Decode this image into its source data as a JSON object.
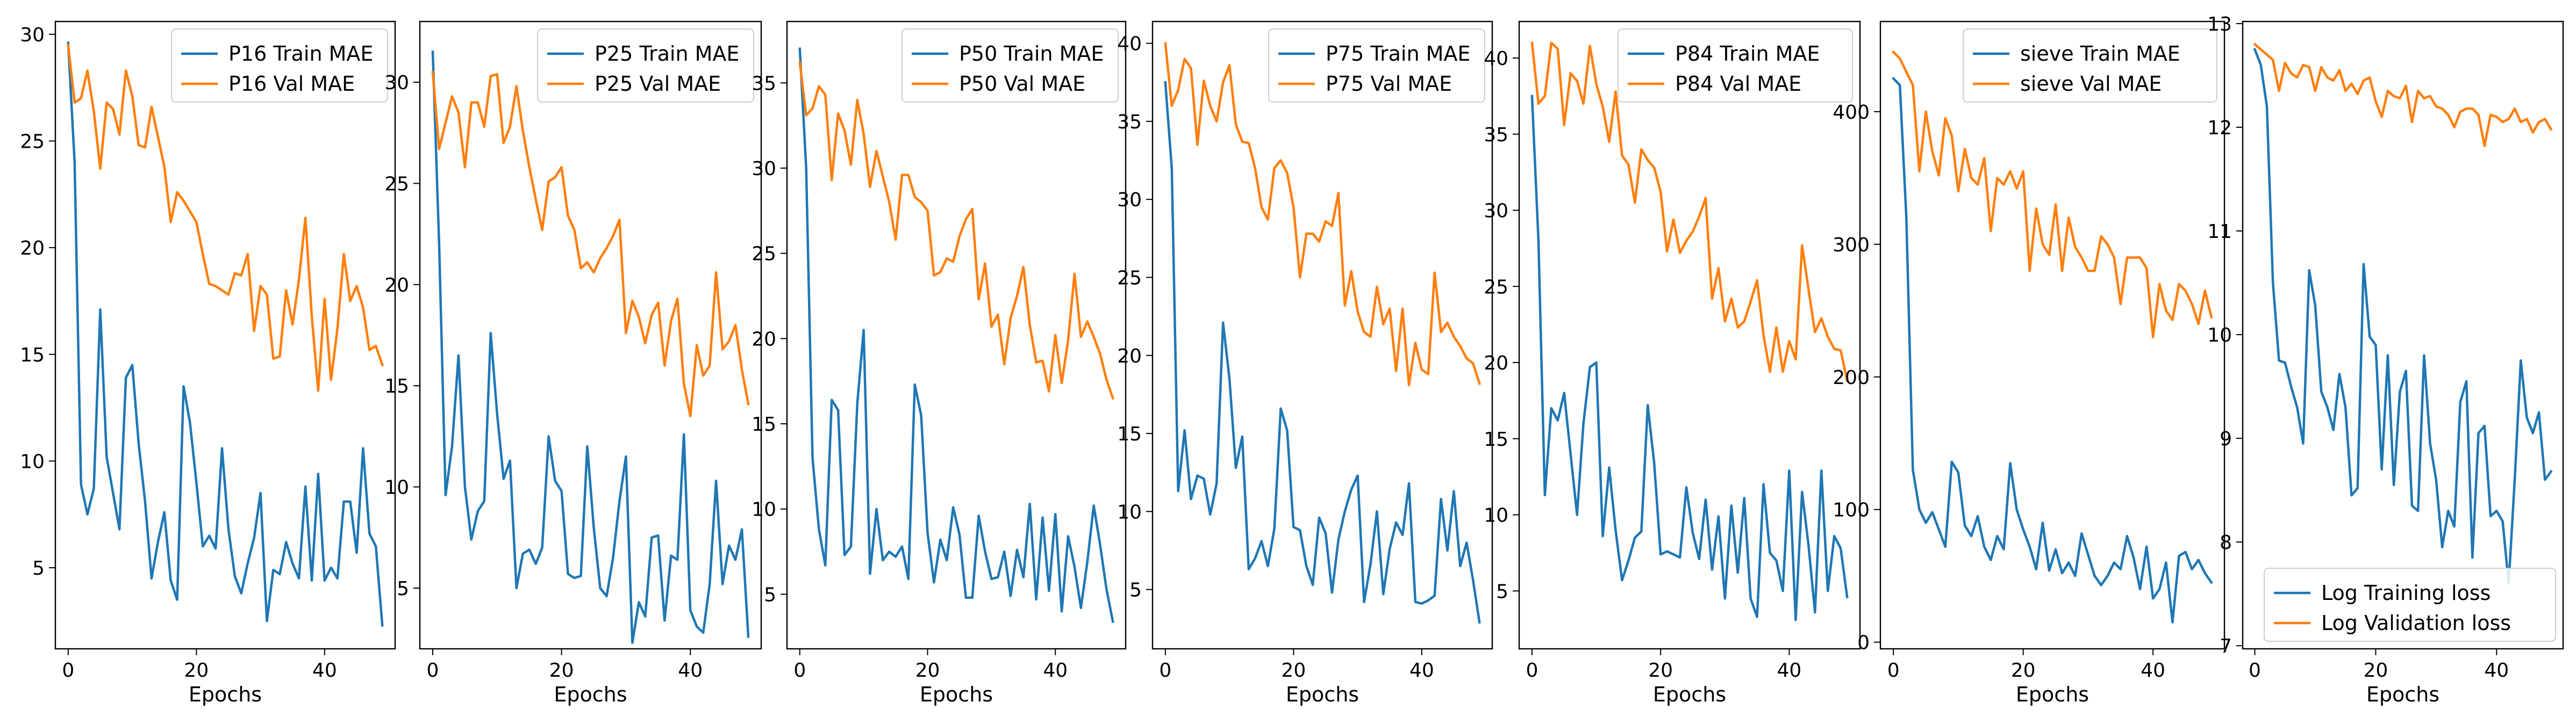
{
  "colors": {
    "train": "#1f77b4",
    "val": "#ff7f0e"
  },
  "chart_data": [
    {
      "type": "line",
      "xlabel": "Epochs",
      "ylabel": "",
      "xlim": [
        -2,
        51
      ],
      "ylim": [
        1.2,
        30.6
      ],
      "xticks": [
        0,
        20,
        40
      ],
      "yticks": [
        5,
        10,
        15,
        20,
        25,
        30
      ],
      "legend": "upper-right",
      "series": [
        {
          "name": "P16 Train MAE",
          "color": "#1f77b4",
          "values": [
            29.6,
            24.0,
            8.9,
            7.5,
            8.7,
            17.1,
            10.2,
            8.5,
            6.8,
            13.9,
            14.5,
            10.8,
            8.1,
            4.5,
            6.2,
            7.6,
            4.4,
            3.5,
            13.5,
            11.8,
            9.0,
            6.0,
            6.5,
            5.9,
            10.6,
            6.8,
            4.6,
            3.8,
            5.2,
            6.4,
            8.5,
            2.5,
            4.9,
            4.7,
            6.2,
            5.2,
            4.5,
            8.8,
            4.4,
            9.4,
            4.4,
            5.0,
            4.5,
            8.1,
            8.1,
            5.7,
            10.6,
            6.6,
            6.0,
            2.3
          ]
        },
        {
          "name": "P16 Val MAE",
          "color": "#ff7f0e",
          "values": [
            29.5,
            26.8,
            27.0,
            28.3,
            26.4,
            23.7,
            26.8,
            26.5,
            25.3,
            28.3,
            27.1,
            24.8,
            24.7,
            26.6,
            25.2,
            23.8,
            21.2,
            22.6,
            22.2,
            21.7,
            21.2,
            19.7,
            18.3,
            18.2,
            18.0,
            17.8,
            18.8,
            18.7,
            19.7,
            16.1,
            18.2,
            17.8,
            14.8,
            14.9,
            18.0,
            16.4,
            18.5,
            21.4,
            16.8,
            13.3,
            17.6,
            13.8,
            16.2,
            19.7,
            17.5,
            18.2,
            17.2,
            15.2,
            15.4,
            14.5
          ]
        }
      ]
    },
    {
      "type": "line",
      "xlabel": "Epochs",
      "ylabel": "",
      "xlim": [
        -2,
        51
      ],
      "ylim": [
        2.0,
        33.0
      ],
      "xticks": [
        0,
        20,
        40
      ],
      "yticks": [
        5,
        10,
        15,
        20,
        25,
        30
      ],
      "legend": "upper-right",
      "series": [
        {
          "name": "P25 Train MAE",
          "color": "#1f77b4",
          "values": [
            31.5,
            22.0,
            9.6,
            12.0,
            16.5,
            10.0,
            7.4,
            8.8,
            9.3,
            17.6,
            13.6,
            10.4,
            11.3,
            5.0,
            6.7,
            6.9,
            6.2,
            7.0,
            12.5,
            10.3,
            9.8,
            5.7,
            5.5,
            5.6,
            12.0,
            8.0,
            5.0,
            4.6,
            6.5,
            9.3,
            11.5,
            2.3,
            4.3,
            3.6,
            7.5,
            7.6,
            3.4,
            6.6,
            6.4,
            12.6,
            3.9,
            3.1,
            2.8,
            5.2,
            10.3,
            5.2,
            7.1,
            6.4,
            7.9,
            2.6
          ]
        },
        {
          "name": "P25 Val MAE",
          "color": "#ff7f0e",
          "values": [
            30.5,
            26.7,
            28.0,
            29.3,
            28.5,
            25.8,
            29.0,
            29.0,
            27.8,
            30.3,
            30.4,
            27.0,
            27.8,
            29.8,
            27.6,
            25.8,
            24.2,
            22.7,
            25.1,
            25.3,
            25.8,
            23.4,
            22.7,
            20.8,
            21.1,
            20.6,
            21.3,
            21.8,
            22.4,
            23.2,
            17.6,
            19.2,
            18.4,
            17.1,
            18.5,
            19.1,
            16.0,
            18.2,
            19.3,
            15.1,
            13.5,
            17.0,
            15.5,
            16.0,
            20.6,
            16.8,
            17.2,
            18.0,
            15.8,
            14.1
          ]
        }
      ]
    },
    {
      "type": "line",
      "xlabel": "Epochs",
      "ylabel": "",
      "xlim": [
        -2,
        51
      ],
      "ylim": [
        1.8,
        38.6
      ],
      "xticks": [
        0,
        20,
        40
      ],
      "yticks": [
        5,
        10,
        15,
        20,
        25,
        30,
        35
      ],
      "legend": "upper-right",
      "series": [
        {
          "name": "P50 Train MAE",
          "color": "#1f77b4",
          "values": [
            37.0,
            30.0,
            13.0,
            8.8,
            6.7,
            16.4,
            15.8,
            7.3,
            7.8,
            16.2,
            20.5,
            6.2,
            10.0,
            7.0,
            7.5,
            7.2,
            7.8,
            5.9,
            17.3,
            15.5,
            8.6,
            5.7,
            8.2,
            7.0,
            10.1,
            8.5,
            4.8,
            4.8,
            9.6,
            7.5,
            5.9,
            6.0,
            7.5,
            4.9,
            7.6,
            6.0,
            10.3,
            4.7,
            9.5,
            5.2,
            9.7,
            4.0,
            8.4,
            6.6,
            4.2,
            6.9,
            10.2,
            7.9,
            5.3,
            3.4
          ]
        },
        {
          "name": "P50 Val MAE",
          "color": "#ff7f0e",
          "values": [
            36.2,
            33.1,
            33.5,
            34.8,
            34.3,
            29.3,
            33.2,
            32.2,
            30.2,
            34.0,
            32.0,
            28.9,
            31.0,
            29.5,
            28.0,
            25.8,
            29.6,
            29.6,
            28.3,
            28.0,
            27.5,
            23.7,
            23.9,
            24.7,
            24.5,
            26.0,
            27.0,
            27.6,
            22.3,
            24.4,
            20.7,
            21.4,
            18.5,
            21.2,
            22.5,
            24.2,
            20.8,
            18.6,
            18.7,
            16.9,
            20.2,
            17.4,
            19.9,
            23.8,
            20.1,
            21.0,
            20.1,
            19.1,
            17.6,
            16.5
          ]
        }
      ]
    },
    {
      "type": "line",
      "xlabel": "Epochs",
      "ylabel": "",
      "xlim": [
        -2,
        51
      ],
      "ylim": [
        1.2,
        41.4
      ],
      "xticks": [
        0,
        20,
        40
      ],
      "yticks": [
        5,
        10,
        15,
        20,
        25,
        30,
        35,
        40
      ],
      "legend": "upper-right",
      "series": [
        {
          "name": "P75 Train MAE",
          "color": "#1f77b4",
          "values": [
            37.5,
            32.0,
            11.3,
            15.2,
            10.8,
            12.3,
            12.1,
            9.8,
            11.8,
            22.1,
            18.5,
            12.8,
            14.8,
            6.3,
            7.0,
            8.1,
            6.5,
            8.9,
            16.6,
            15.2,
            9.0,
            8.8,
            6.5,
            5.3,
            9.6,
            8.6,
            4.8,
            8.2,
            10.0,
            11.4,
            12.3,
            4.2,
            6.6,
            10.0,
            4.7,
            7.6,
            9.3,
            8.5,
            11.8,
            4.2,
            4.1,
            4.3,
            4.6,
            10.8,
            7.5,
            11.3,
            6.5,
            8.0,
            5.6,
            2.9
          ]
        },
        {
          "name": "P75 Val MAE",
          "color": "#ff7f0e",
          "values": [
            40.0,
            36.0,
            37.0,
            39.0,
            38.4,
            33.5,
            37.6,
            36.0,
            35.0,
            37.5,
            38.6,
            34.8,
            33.7,
            33.6,
            32.0,
            29.5,
            28.7,
            32.0,
            32.5,
            31.7,
            29.5,
            25.0,
            27.8,
            27.8,
            27.3,
            28.6,
            28.3,
            30.4,
            23.2,
            25.4,
            22.8,
            21.5,
            21.2,
            24.4,
            22.0,
            23.0,
            19.0,
            23.0,
            18.1,
            20.8,
            19.1,
            18.8,
            25.3,
            21.5,
            22.1,
            21.2,
            20.6,
            19.8,
            19.5,
            18.2
          ]
        }
      ]
    },
    {
      "type": "line",
      "xlabel": "Epochs",
      "ylabel": "",
      "xlim": [
        -2,
        51
      ],
      "ylim": [
        1.2,
        42.4
      ],
      "xticks": [
        0,
        20,
        40
      ],
      "yticks": [
        5,
        10,
        15,
        20,
        25,
        30,
        35,
        40
      ],
      "legend": "upper-right",
      "series": [
        {
          "name": "P84 Train MAE",
          "color": "#1f77b4",
          "values": [
            37.5,
            28.0,
            11.3,
            17.0,
            16.2,
            18.0,
            14.0,
            10.0,
            16.0,
            19.7,
            20.0,
            8.6,
            13.1,
            9.0,
            5.7,
            7.0,
            8.5,
            8.9,
            17.2,
            13.4,
            7.4,
            7.6,
            7.4,
            7.2,
            11.8,
            8.8,
            7.1,
            11.0,
            6.4,
            9.9,
            4.5,
            10.6,
            6.2,
            11.1,
            4.5,
            3.3,
            12.0,
            7.5,
            7.0,
            5.0,
            12.9,
            3.1,
            11.5,
            8.0,
            3.6,
            12.9,
            5.0,
            8.6,
            7.8,
            4.6
          ]
        },
        {
          "name": "P84 Val MAE",
          "color": "#ff7f0e",
          "values": [
            41.0,
            37.0,
            37.5,
            41.0,
            40.6,
            35.6,
            39.0,
            38.5,
            37.0,
            40.8,
            38.3,
            36.8,
            34.5,
            37.8,
            33.6,
            33.0,
            30.5,
            34.0,
            33.3,
            32.8,
            31.2,
            27.3,
            29.4,
            27.2,
            28.0,
            28.6,
            29.6,
            30.8,
            24.2,
            26.2,
            22.7,
            24.2,
            22.3,
            22.7,
            24.0,
            25.4,
            21.8,
            19.4,
            22.3,
            19.4,
            21.4,
            20.2,
            27.7,
            24.8,
            22.0,
            22.9,
            21.7,
            20.9,
            20.8,
            18.8
          ]
        }
      ]
    },
    {
      "type": "line",
      "xlabel": "Epochs",
      "ylabel": "",
      "xlim": [
        -2,
        51
      ],
      "ylim": [
        -5,
        468
      ],
      "xticks": [
        0,
        20,
        40
      ],
      "yticks": [
        0,
        100,
        200,
        300,
        400
      ],
      "legend": "upper-right",
      "series": [
        {
          "name": "sieve Train MAE",
          "color": "#1f77b4",
          "values": [
            425,
            420,
            320,
            130,
            100,
            90,
            98,
            85,
            72,
            136,
            128,
            88,
            80,
            95,
            72,
            62,
            80,
            70,
            135,
            100,
            85,
            72,
            55,
            90,
            54,
            70,
            52,
            60,
            50,
            82,
            66,
            50,
            43,
            50,
            60,
            55,
            80,
            64,
            40,
            72,
            33,
            40,
            60,
            15,
            65,
            68,
            55,
            62,
            52,
            45
          ]
        },
        {
          "name": "sieve Val MAE",
          "color": "#ff7f0e",
          "values": [
            445,
            440,
            430,
            420,
            355,
            400,
            370,
            352,
            395,
            382,
            340,
            372,
            350,
            345,
            365,
            310,
            350,
            345,
            355,
            342,
            355,
            280,
            327,
            300,
            292,
            330,
            280,
            320,
            298,
            290,
            280,
            280,
            306,
            300,
            290,
            255,
            290,
            290,
            290,
            282,
            230,
            270,
            250,
            243,
            270,
            265,
            255,
            240,
            265,
            245
          ]
        }
      ]
    },
    {
      "type": "line",
      "xlabel": "Epochs",
      "ylabel": "",
      "xlim": [
        -2,
        51
      ],
      "ylim": [
        6.97,
        13.02
      ],
      "xticks": [
        0,
        20,
        40
      ],
      "yticks": [
        7,
        8,
        9,
        10,
        11,
        12,
        13
      ],
      "legend": "lower-right",
      "series": [
        {
          "name": "Log Training loss",
          "color": "#1f77b4",
          "values": [
            12.75,
            12.6,
            12.2,
            10.5,
            9.75,
            9.73,
            9.5,
            9.3,
            8.95,
            10.62,
            10.28,
            9.45,
            9.3,
            9.08,
            9.62,
            9.3,
            8.45,
            8.52,
            10.68,
            9.98,
            9.9,
            8.7,
            9.8,
            8.55,
            9.45,
            9.65,
            8.35,
            8.3,
            9.8,
            8.95,
            8.6,
            7.95,
            8.3,
            8.15,
            9.35,
            9.55,
            7.85,
            9.05,
            9.12,
            8.25,
            8.3,
            8.2,
            7.6,
            8.6,
            9.75,
            9.2,
            9.05,
            9.25,
            8.6,
            8.68
          ]
        },
        {
          "name": "Log Validation loss",
          "color": "#ff7f0e",
          "values": [
            12.8,
            12.75,
            12.7,
            12.65,
            12.35,
            12.62,
            12.52,
            12.48,
            12.6,
            12.58,
            12.35,
            12.58,
            12.48,
            12.45,
            12.55,
            12.35,
            12.42,
            12.32,
            12.45,
            12.48,
            12.25,
            12.1,
            12.35,
            12.3,
            12.28,
            12.4,
            12.05,
            12.35,
            12.28,
            12.3,
            12.2,
            12.18,
            12.12,
            12.0,
            12.15,
            12.18,
            12.18,
            12.12,
            11.82,
            12.12,
            12.1,
            12.05,
            12.08,
            12.18,
            12.05,
            12.08,
            11.95,
            12.05,
            12.08,
            11.98
          ]
        }
      ]
    }
  ]
}
